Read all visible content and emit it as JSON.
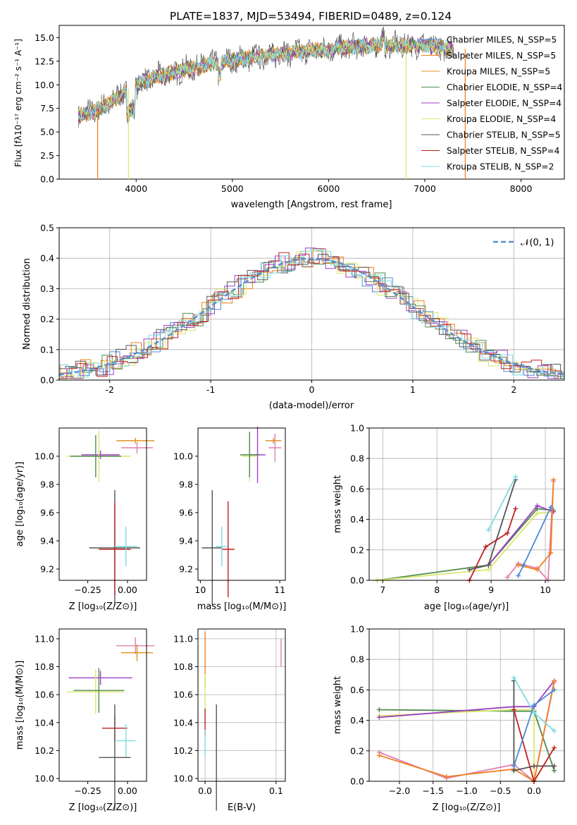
{
  "figure": {
    "title": "PLATE=1837, MJD=53494, FIBERID=0489, z=0.124"
  },
  "colors": {
    "c_miles": "#4a8bd6",
    "s_miles": "#f07f1e",
    "k_miles": "#e09020",
    "c_elodie": "#4f8a4f",
    "s_elodie": "#9d3fc4",
    "k_elodie": "#d9e86a",
    "c_stelib": "#555555",
    "s_stelib": "#c02020",
    "k_stelib": "#7fdbe0",
    "normal": "#5b8fd0",
    "pink": "#e080b0"
  },
  "chart_data": [
    {
      "id": "spectrum",
      "type": "line",
      "title": "PLATE=1837, MJD=53494, FIBERID=0489, z=0.124",
      "xlabel": "wavelength [Angstrom, rest frame]",
      "ylabel": "Flux [fλ10⁻¹⁷ erg cm⁻² s⁻¹ A⁻¹]",
      "xlim": [
        3200,
        8450
      ],
      "ylim": [
        0,
        16.3
      ],
      "xticks": [
        4000,
        5000,
        6000,
        7000,
        8000
      ],
      "yticks": [
        0.0,
        2.5,
        5.0,
        7.5,
        10.0,
        12.5,
        15.0
      ],
      "legend_position": "top-right",
      "legend": [
        {
          "label": "Chabrier MILES, N_SSP=5",
          "color": "#4a8bd6"
        },
        {
          "label": "Salpeter MILES, N_SSP=5",
          "color": "#f07f1e"
        },
        {
          "label": "Kroupa MILES, N_SSP=5",
          "color": "#e09020"
        },
        {
          "label": "Chabrier ELODIE, N_SSP=4",
          "color": "#4f8a4f"
        },
        {
          "label": "Salpeter ELODIE, N_SSP=4",
          "color": "#9d3fc4"
        },
        {
          "label": "Kroupa ELODIE, N_SSP=4",
          "color": "#d9e86a"
        },
        {
          "label": "Chabrier STELIB, N_SSP=5",
          "color": "#555555"
        },
        {
          "label": "Salpeter STELIB, N_SSP=4",
          "color": "#c02020"
        },
        {
          "label": "Kroupa STELIB, N_SSP=2",
          "color": "#7fdbe0"
        }
      ],
      "continuum": [
        [
          3400,
          6.8
        ],
        [
          3500,
          7.0
        ],
        [
          3700,
          7.8
        ],
        [
          3900,
          9.5
        ],
        [
          4000,
          10.0
        ],
        [
          4200,
          10.8
        ],
        [
          4500,
          11.6
        ],
        [
          5000,
          12.6
        ],
        [
          5500,
          13.3
        ],
        [
          6000,
          13.8
        ],
        [
          6500,
          14.2
        ],
        [
          7000,
          14.2
        ],
        [
          7300,
          13.8
        ]
      ],
      "drops": [
        {
          "x": 3600,
          "color": "#f07f1e"
        },
        {
          "x": 3920,
          "color": "#d9e86a"
        },
        {
          "x": 6805,
          "color": "#d9e86a"
        },
        {
          "x": 7420,
          "color": "#f07f1e"
        }
      ]
    },
    {
      "id": "residuals",
      "type": "histogram",
      "xlabel": "(data-model)/error",
      "ylabel": "Normed distribution",
      "xlim": [
        -2.5,
        2.5
      ],
      "ylim": [
        0,
        0.5
      ],
      "xticks": [
        -2,
        -1,
        0,
        1,
        2
      ],
      "yticks": [
        0.0,
        0.1,
        0.2,
        0.3,
        0.4,
        0.5
      ],
      "legend": [
        {
          "label": "𝒩(0, 1)",
          "color": "#5b8fd0"
        }
      ],
      "grid": true
    },
    {
      "id": "age_vs_Z",
      "type": "errorbar",
      "xlabel": "Z [log₁₀(Z/Z⊙)]",
      "ylabel": "age  [log₁₀(age/yr)]",
      "xlim": [
        -0.43,
        0.12
      ],
      "ylim": [
        9.12,
        10.2
      ],
      "xticks": [
        -0.25,
        0.0
      ],
      "xticklabels": [
        "−0.25",
        "0.00"
      ],
      "yticks": [
        9.2,
        9.4,
        9.6,
        9.8,
        10.0
      ],
      "points": [
        {
          "x": 0.05,
          "y": 10.11,
          "xerr": 0.12,
          "yerr": 0.02,
          "color": "#e09020"
        },
        {
          "x": 0.06,
          "y": 10.06,
          "xerr": 0.1,
          "yerr": 0.04,
          "color": "#e080b0"
        },
        {
          "x": -0.17,
          "y": 10.01,
          "xerr": 0.12,
          "yerr": 0.03,
          "color": "#9d3fc4"
        },
        {
          "x": -0.18,
          "y": 10.0,
          "xerr": 0.2,
          "yerr": 0.18,
          "color": "#d9e86a"
        },
        {
          "x": -0.2,
          "y": 10.0,
          "xerr": 0.16,
          "yerr": 0.15,
          "color": "#4f8a4f"
        },
        {
          "x": -0.08,
          "y": 9.35,
          "xerr": 0.16,
          "yerr": 0.41,
          "color": "#555555"
        },
        {
          "x": -0.08,
          "y": 9.34,
          "xerr": 0.1,
          "yerr": 0.33,
          "color": "#c02020"
        },
        {
          "x": -0.01,
          "y": 9.36,
          "xerr": 0.07,
          "yerr": 0.14,
          "color": "#7fdbe0"
        }
      ]
    },
    {
      "id": "age_vs_mass",
      "type": "errorbar",
      "xlabel": "mass [log₁₀(M/M⊙)]",
      "xlim": [
        9.97,
        11.07
      ],
      "ylim": [
        9.12,
        10.2
      ],
      "xticks": [
        10,
        11
      ],
      "yticks": [
        9.2,
        9.4,
        9.6,
        9.8,
        10.0
      ],
      "points": [
        {
          "x": 10.92,
          "y": 10.11,
          "xerr": 0.1,
          "yerr": 0.02,
          "color": "#e09020"
        },
        {
          "x": 10.94,
          "y": 10.06,
          "xerr": 0.08,
          "yerr": 0.1,
          "color": "#e080b0"
        },
        {
          "x": 10.72,
          "y": 10.01,
          "xerr": 0.1,
          "yerr": 0.2,
          "color": "#9d3fc4"
        },
        {
          "x": 10.62,
          "y": 10.0,
          "xerr": 0.1,
          "yerr": 0.18,
          "color": "#d9e86a"
        },
        {
          "x": 10.62,
          "y": 10.01,
          "xerr": 0.12,
          "yerr": 0.16,
          "color": "#4f8a4f"
        },
        {
          "x": 10.15,
          "y": 9.35,
          "xerr": 0.13,
          "yerr": 0.41,
          "color": "#555555"
        },
        {
          "x": 10.35,
          "y": 9.34,
          "xerr": 0.08,
          "yerr": 0.34,
          "color": "#c02020"
        },
        {
          "x": 10.27,
          "y": 9.36,
          "xerr": 0.07,
          "yerr": 0.14,
          "color": "#7fdbe0"
        }
      ]
    },
    {
      "id": "mass_weight_vs_age",
      "type": "line",
      "xlabel": "age  [log₁₀(age/yr)]",
      "ylabel": "mass weight",
      "xlim": [
        6.75,
        10.35
      ],
      "ylim": [
        0,
        1.0
      ],
      "xticks": [
        7,
        8,
        9,
        10
      ],
      "yticks": [
        0.0,
        0.2,
        0.4,
        0.6,
        0.8,
        1.0
      ],
      "grid": true,
      "series": [
        {
          "color": "#4f8a4f",
          "points": [
            [
              6.9,
              0.0
            ],
            [
              8.95,
              0.1
            ],
            [
              9.85,
              0.47
            ],
            [
              10.15,
              0.46
            ]
          ]
        },
        {
          "color": "#d9e86a",
          "points": [
            [
              6.9,
              0.0
            ],
            [
              8.95,
              0.07
            ],
            [
              9.85,
              0.44
            ],
            [
              10.15,
              0.45
            ]
          ]
        },
        {
          "color": "#9d3fc4",
          "points": [
            [
              8.95,
              0.1
            ],
            [
              9.85,
              0.49
            ],
            [
              10.15,
              0.45
            ]
          ]
        },
        {
          "color": "#555555",
          "points": [
            [
              8.6,
              0.07
            ],
            [
              8.95,
              0.1
            ],
            [
              9.45,
              0.66
            ]
          ]
        },
        {
          "color": "#c02020",
          "points": [
            [
              8.6,
              0.0
            ],
            [
              8.9,
              0.22
            ],
            [
              9.3,
              0.31
            ],
            [
              9.45,
              0.47
            ]
          ]
        },
        {
          "color": "#7fdbe0",
          "points": [
            [
              8.95,
              0.33
            ],
            [
              9.45,
              0.68
            ]
          ]
        },
        {
          "color": "#e080b0",
          "points": [
            [
              9.3,
              0.02
            ],
            [
              9.5,
              0.11
            ],
            [
              9.85,
              0.08
            ],
            [
              10.05,
              0.0
            ],
            [
              10.15,
              0.65
            ]
          ]
        },
        {
          "color": "#f07f1e",
          "points": [
            [
              9.5,
              0.1
            ],
            [
              9.85,
              0.07
            ],
            [
              10.1,
              0.18
            ],
            [
              10.15,
              0.66
            ]
          ]
        },
        {
          "color": "#4a8bd6",
          "points": [
            [
              9.5,
              0.03
            ],
            [
              9.6,
              0.1
            ],
            [
              10.1,
              0.48
            ]
          ]
        }
      ]
    },
    {
      "id": "mass_vs_Z",
      "type": "errorbar",
      "xlabel": "Z [log₁₀(Z/Z⊙)]",
      "ylabel": "mass [log₁₀(M/M⊙)]",
      "xlim": [
        -0.43,
        0.12
      ],
      "ylim": [
        9.98,
        11.07
      ],
      "xticks": [
        -0.25,
        0.0
      ],
      "xticklabels": [
        "−0.25",
        "0.00"
      ],
      "yticks": [
        10.0,
        10.2,
        10.4,
        10.6,
        10.8,
        11.0
      ],
      "points": [
        {
          "x": 0.05,
          "y": 10.95,
          "xerr": 0.12,
          "yerr": 0.06,
          "color": "#e080b0"
        },
        {
          "x": 0.06,
          "y": 10.9,
          "xerr": 0.1,
          "yerr": 0.06,
          "color": "#e09020"
        },
        {
          "x": -0.17,
          "y": 10.72,
          "xerr": 0.2,
          "yerr": 0.05,
          "color": "#9d3fc4"
        },
        {
          "x": -0.2,
          "y": 10.62,
          "xerr": 0.18,
          "yerr": 0.16,
          "color": "#d9e86a"
        },
        {
          "x": -0.18,
          "y": 10.63,
          "xerr": 0.16,
          "yerr": 0.16,
          "color": "#4f8a4f"
        },
        {
          "x": -0.08,
          "y": 10.36,
          "xerr": 0.08,
          "yerr": 0.1,
          "color": "#c02020"
        },
        {
          "x": -0.01,
          "y": 10.27,
          "xerr": 0.06,
          "yerr": 0.12,
          "color": "#7fdbe0"
        },
        {
          "x": -0.08,
          "y": 10.15,
          "xerr": 0.1,
          "yerr": 0.38,
          "color": "#555555"
        }
      ]
    },
    {
      "id": "mass_vs_ebv",
      "type": "errorbar",
      "xlabel": "E(B-V)",
      "xlim": [
        -0.01,
        0.113
      ],
      "ylim": [
        9.98,
        11.07
      ],
      "xticks": [
        0.0,
        0.1
      ],
      "yticks": [
        10.0,
        10.2,
        10.4,
        10.6,
        10.8,
        11.0
      ],
      "grid": true,
      "points": [
        {
          "x": 0.0,
          "y": 10.85,
          "xerr": 0,
          "yerr": 0.2,
          "color": "#f07f1e"
        },
        {
          "x": 0.0,
          "y": 10.6,
          "xerr": 0,
          "yerr": 0.15,
          "color": "#d9e86a"
        },
        {
          "x": 0.0,
          "y": 10.4,
          "xerr": 0,
          "yerr": 0.1,
          "color": "#c02020"
        },
        {
          "x": 0.0,
          "y": 10.25,
          "xerr": 0,
          "yerr": 0.1,
          "color": "#7fdbe0"
        },
        {
          "x": 0.016,
          "y": 10.15,
          "xerr": 0,
          "yerr": 0.38,
          "color": "#555555"
        },
        {
          "x": 0.107,
          "y": 10.9,
          "xerr": 0,
          "yerr": 0.1,
          "color": "#e080b0"
        }
      ]
    },
    {
      "id": "mass_weight_vs_Z",
      "type": "line",
      "xlabel": "Z [log₁₀(Z/Z⊙)]",
      "ylabel": "mass weight",
      "xlim": [
        -2.45,
        0.45
      ],
      "ylim": [
        0,
        1.0
      ],
      "xticks": [
        -2.0,
        -1.5,
        -1.0,
        -0.5,
        0.0
      ],
      "xticklabels": [
        "−2.0",
        "−1.5",
        "−1.0",
        "−0.5",
        "0.0"
      ],
      "yticks": [
        0.0,
        0.2,
        0.4,
        0.6,
        0.8,
        1.0
      ],
      "grid": true,
      "series": [
        {
          "color": "#4f8a4f",
          "points": [
            [
              -2.3,
              0.47
            ],
            [
              -0.3,
              0.46
            ],
            [
              0.0,
              0.46
            ],
            [
              0.3,
              0.07
            ]
          ]
        },
        {
          "color": "#d9e86a",
          "points": [
            [
              -2.3,
              0.43
            ],
            [
              -0.3,
              0.47
            ],
            [
              0.0,
              0.47
            ],
            [
              0.0,
              0.0
            ]
          ]
        },
        {
          "color": "#9d3fc4",
          "points": [
            [
              -2.3,
              0.42
            ],
            [
              -0.3,
              0.49
            ],
            [
              0.0,
              0.49
            ],
            [
              0.3,
              0.66
            ]
          ]
        },
        {
          "color": "#e080b0",
          "points": [
            [
              -2.3,
              0.19
            ],
            [
              -1.3,
              0.02
            ],
            [
              -0.3,
              0.11
            ],
            [
              0.0,
              0.0
            ],
            [
              0.3,
              0.65
            ]
          ]
        },
        {
          "color": "#f07f1e",
          "points": [
            [
              -2.3,
              0.17
            ],
            [
              -1.3,
              0.03
            ],
            [
              -0.3,
              0.08
            ],
            [
              0.0,
              0.0
            ],
            [
              0.3,
              0.66
            ]
          ]
        },
        {
          "color": "#555555",
          "points": [
            [
              -0.3,
              0.66
            ],
            [
              -0.3,
              0.07
            ],
            [
              0.0,
              0.1
            ],
            [
              0.3,
              0.1
            ]
          ]
        },
        {
          "color": "#c02020",
          "points": [
            [
              -0.3,
              0.47
            ],
            [
              0.0,
              0.0
            ],
            [
              0.3,
              0.22
            ]
          ]
        },
        {
          "color": "#7fdbe0",
          "points": [
            [
              -0.3,
              0.68
            ],
            [
              0.0,
              0.45
            ],
            [
              0.3,
              0.33
            ]
          ]
        },
        {
          "color": "#4a8bd6",
          "points": [
            [
              -0.3,
              0.1
            ],
            [
              0.0,
              0.5
            ],
            [
              0.3,
              0.6
            ]
          ]
        }
      ]
    }
  ]
}
